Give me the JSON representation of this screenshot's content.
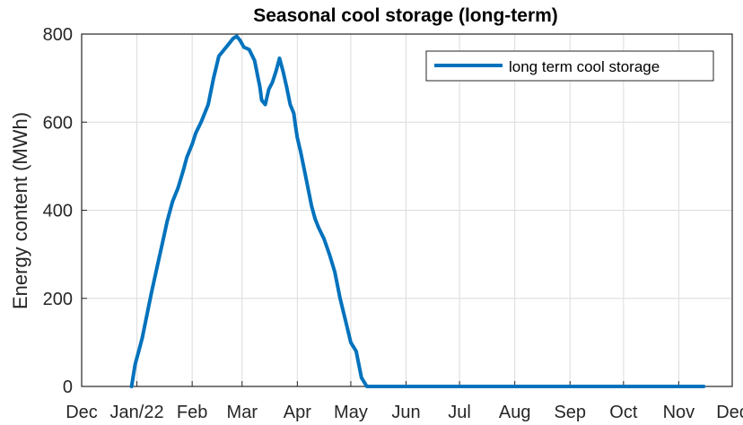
{
  "chart_data": {
    "type": "line",
    "title": "Seasonal cool storage (long-term)",
    "xlabel": "",
    "ylabel": "Energy content (MWh)",
    "x_unit": "day of year 2022 (day 0 = 1 Jan 2022)",
    "xlim": [
      -31,
      334
    ],
    "ylim": [
      0,
      800
    ],
    "yticks": [
      0,
      200,
      400,
      600,
      800
    ],
    "xticks": [
      {
        "x": -31,
        "label": "Dec"
      },
      {
        "x": 0,
        "label": "Jan/22"
      },
      {
        "x": 31,
        "label": "Feb"
      },
      {
        "x": 59,
        "label": "Mar"
      },
      {
        "x": 90,
        "label": "Apr"
      },
      {
        "x": 120,
        "label": "May"
      },
      {
        "x": 151,
        "label": "Jun"
      },
      {
        "x": 181,
        "label": "Jul"
      },
      {
        "x": 212,
        "label": "Aug"
      },
      {
        "x": 243,
        "label": "Sep"
      },
      {
        "x": 273,
        "label": "Oct"
      },
      {
        "x": 304,
        "label": "Nov"
      },
      {
        "x": 334,
        "label": "Dec"
      }
    ],
    "grid": true,
    "legend": {
      "position": "top-right",
      "entries": [
        "long term cool storage"
      ]
    },
    "series": [
      {
        "name": "long term cool storage",
        "color": "#0072BD",
        "x": [
          -3,
          -1,
          1,
          3,
          5,
          8,
          11,
          14,
          17,
          20,
          23,
          26,
          28,
          31,
          33,
          36,
          38,
          40,
          43,
          46,
          49,
          51,
          54,
          56,
          58,
          60,
          63,
          66,
          69,
          70,
          72,
          74,
          76,
          78,
          79,
          80,
          82,
          84,
          86,
          88,
          89,
          90,
          92,
          95,
          98,
          100,
          102,
          105,
          108,
          111,
          114,
          117,
          120,
          123,
          126,
          129,
          132,
          135,
          138,
          141,
          144,
          147,
          150,
          152,
          154,
          155,
          157,
          158,
          160,
          190,
          220,
          250,
          280,
          310,
          318
        ],
        "y": [
          0,
          50,
          80,
          110,
          150,
          210,
          265,
          320,
          375,
          420,
          450,
          490,
          520,
          550,
          575,
          600,
          620,
          640,
          700,
          750,
          765,
          775,
          790,
          795,
          785,
          770,
          765,
          740,
          680,
          650,
          640,
          675,
          690,
          715,
          730,
          745,
          715,
          680,
          640,
          620,
          590,
          565,
          530,
          470,
          410,
          380,
          360,
          335,
          300,
          260,
          200,
          150,
          100,
          80,
          20,
          0,
          0,
          0,
          0,
          0,
          0,
          0,
          0,
          0,
          0,
          0,
          0,
          0,
          0,
          0,
          0,
          0,
          0,
          0,
          0
        ]
      }
    ]
  }
}
